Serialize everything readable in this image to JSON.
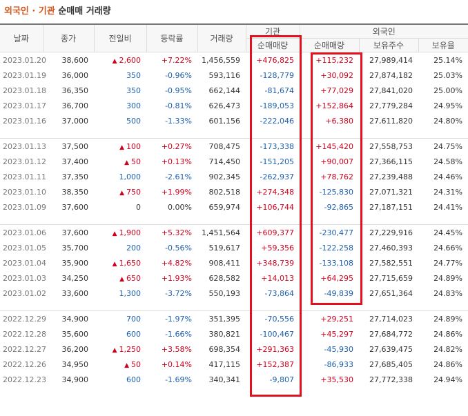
{
  "title": {
    "part1": "외국인 · 기관",
    "part2": "순매매 거래량"
  },
  "headers": {
    "date": "날짜",
    "close": "종가",
    "change": "전일비",
    "rate": "등락률",
    "volume": "거래량",
    "inst_group": "기관",
    "inst_net": "순매매량",
    "foreign_group": "외국인",
    "foreign_net": "순매매량",
    "foreign_hold": "보유주수",
    "foreign_ratio": "보유율"
  },
  "colors": {
    "up": "#d0001c",
    "down": "#1d5fac",
    "highlight": "#e3101f",
    "title_accent": "#d2561e"
  },
  "rows": [
    {
      "date": "2023.01.20",
      "close": "38,600",
      "change": "2,600",
      "dir": "up",
      "rate": "+7.22%",
      "volume": "1,456,559",
      "inst": "+476,825",
      "foreign": "+115,232",
      "hold": "27,989,414",
      "ratio": "25.14%"
    },
    {
      "date": "2023.01.19",
      "close": "36,000",
      "change": "350",
      "dir": "down",
      "rate": "-0.96%",
      "volume": "593,116",
      "inst": "-128,779",
      "foreign": "+30,092",
      "hold": "27,874,182",
      "ratio": "25.03%"
    },
    {
      "date": "2023.01.18",
      "close": "36,350",
      "change": "350",
      "dir": "down",
      "rate": "-0.95%",
      "volume": "662,144",
      "inst": "-81,674",
      "foreign": "+77,029",
      "hold": "27,841,020",
      "ratio": "25.00%"
    },
    {
      "date": "2023.01.17",
      "close": "36,700",
      "change": "300",
      "dir": "down",
      "rate": "-0.81%",
      "volume": "626,473",
      "inst": "-189,053",
      "foreign": "+152,864",
      "hold": "27,779,284",
      "ratio": "24.95%"
    },
    {
      "date": "2023.01.16",
      "close": "37,000",
      "change": "500",
      "dir": "down",
      "rate": "-1.33%",
      "volume": "601,156",
      "inst": "-222,046",
      "foreign": "+6,380",
      "hold": "27,611,820",
      "ratio": "24.80%"
    },
    {
      "date": "2023.01.13",
      "close": "37,500",
      "change": "100",
      "dir": "up",
      "rate": "+0.27%",
      "volume": "708,475",
      "inst": "-173,338",
      "foreign": "+145,420",
      "hold": "27,558,753",
      "ratio": "24.75%"
    },
    {
      "date": "2023.01.12",
      "close": "37,400",
      "change": "50",
      "dir": "up",
      "rate": "+0.13%",
      "volume": "714,450",
      "inst": "-151,205",
      "foreign": "+90,007",
      "hold": "27,366,115",
      "ratio": "24.58%"
    },
    {
      "date": "2023.01.11",
      "close": "37,350",
      "change": "1,000",
      "dir": "down",
      "rate": "-2.61%",
      "volume": "902,345",
      "inst": "-262,937",
      "foreign": "+78,762",
      "hold": "27,239,488",
      "ratio": "24.46%"
    },
    {
      "date": "2023.01.10",
      "close": "38,350",
      "change": "750",
      "dir": "up",
      "rate": "+1.99%",
      "volume": "802,518",
      "inst": "+274,348",
      "foreign": "-125,830",
      "hold": "27,071,321",
      "ratio": "24.31%"
    },
    {
      "date": "2023.01.09",
      "close": "37,600",
      "change": "0",
      "dir": "flat",
      "rate": "0.00%",
      "volume": "659,974",
      "inst": "+106,744",
      "foreign": "-92,865",
      "hold": "27,187,151",
      "ratio": "24.41%"
    },
    {
      "date": "2023.01.06",
      "close": "37,600",
      "change": "1,900",
      "dir": "up",
      "rate": "+5.32%",
      "volume": "1,451,564",
      "inst": "+609,377",
      "foreign": "-230,477",
      "hold": "27,229,916",
      "ratio": "24.45%"
    },
    {
      "date": "2023.01.05",
      "close": "35,700",
      "change": "200",
      "dir": "down",
      "rate": "-0.56%",
      "volume": "519,617",
      "inst": "+59,356",
      "foreign": "-122,258",
      "hold": "27,460,393",
      "ratio": "24.66%"
    },
    {
      "date": "2023.01.04",
      "close": "35,900",
      "change": "1,650",
      "dir": "up",
      "rate": "+4.82%",
      "volume": "908,411",
      "inst": "+348,739",
      "foreign": "-133,108",
      "hold": "27,582,551",
      "ratio": "24.77%"
    },
    {
      "date": "2023.01.03",
      "close": "34,250",
      "change": "650",
      "dir": "up",
      "rate": "+1.93%",
      "volume": "628,582",
      "inst": "+14,013",
      "foreign": "+64,295",
      "hold": "27,715,659",
      "ratio": "24.89%"
    },
    {
      "date": "2023.01.02",
      "close": "33,600",
      "change": "1,300",
      "dir": "down",
      "rate": "-3.72%",
      "volume": "550,193",
      "inst": "-73,864",
      "foreign": "-49,839",
      "hold": "27,651,364",
      "ratio": "24.83%"
    },
    {
      "date": "2022.12.29",
      "close": "34,900",
      "change": "700",
      "dir": "down",
      "rate": "-1.97%",
      "volume": "351,395",
      "inst": "-70,556",
      "foreign": "+29,251",
      "hold": "27,714,023",
      "ratio": "24.89%"
    },
    {
      "date": "2022.12.28",
      "close": "35,600",
      "change": "600",
      "dir": "down",
      "rate": "-1.66%",
      "volume": "380,821",
      "inst": "-100,467",
      "foreign": "+45,297",
      "hold": "27,684,772",
      "ratio": "24.86%"
    },
    {
      "date": "2022.12.27",
      "close": "36,200",
      "change": "1,250",
      "dir": "up",
      "rate": "+3.58%",
      "volume": "698,354",
      "inst": "+291,363",
      "foreign": "-45,930",
      "hold": "27,639,475",
      "ratio": "24.82%"
    },
    {
      "date": "2022.12.26",
      "close": "34,950",
      "change": "50",
      "dir": "up",
      "rate": "+0.14%",
      "volume": "417,115",
      "inst": "+152,387",
      "foreign": "-86,933",
      "hold": "27,685,405",
      "ratio": "24.86%"
    },
    {
      "date": "2022.12.23",
      "close": "34,900",
      "change": "600",
      "dir": "down",
      "rate": "-1.69%",
      "volume": "340,341",
      "inst": "-9,807",
      "foreign": "+35,530",
      "hold": "27,772,338",
      "ratio": "24.94%"
    }
  ]
}
